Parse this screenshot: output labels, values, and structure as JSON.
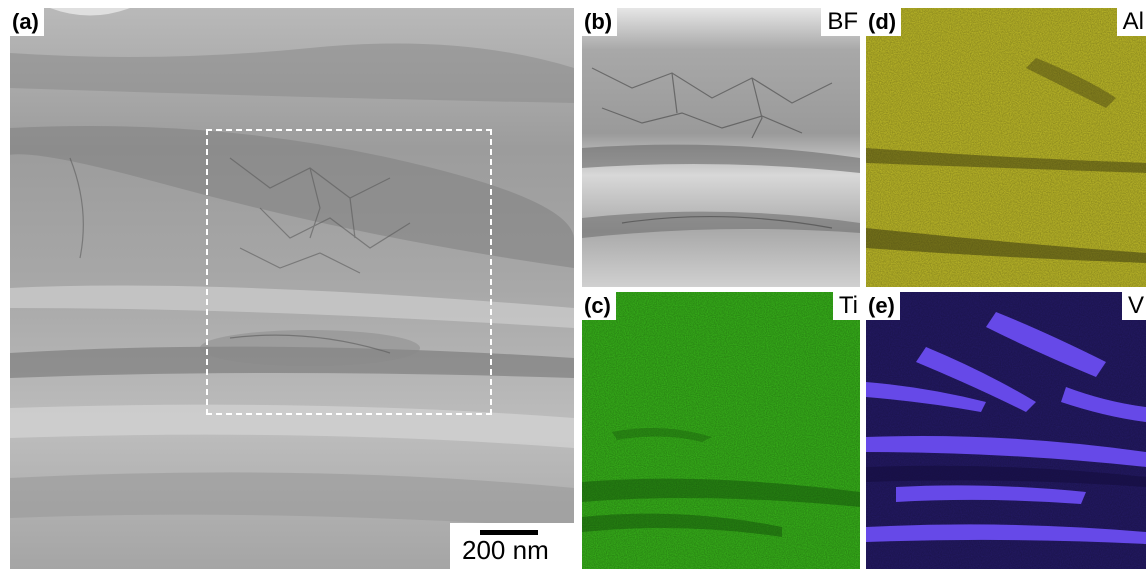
{
  "panels": {
    "a": {
      "label": "(a)",
      "scale_bar": "200 nm"
    },
    "b": {
      "label": "(b)",
      "signal": "BF"
    },
    "c": {
      "label": "(c)",
      "signal": "Ti",
      "color": "#39b81b"
    },
    "d": {
      "label": "(d)",
      "signal": "Al",
      "color": "#c4c02a"
    },
    "e": {
      "label": "(e)",
      "signal": "V",
      "color": "#5a3fe0"
    }
  }
}
